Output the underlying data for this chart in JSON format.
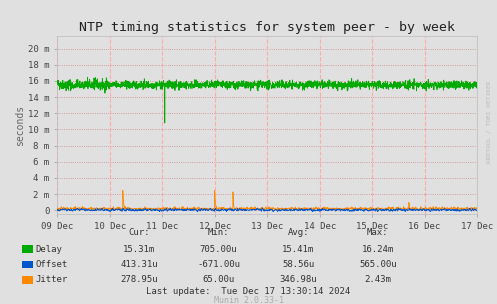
{
  "title": "NTP timing statistics for system peer - by week",
  "ylabel": "seconds",
  "background_color": "#e0e0e0",
  "plot_bg_color": "#e0e0e0",
  "grid_color_h": "#cc8888",
  "grid_color_v": "#ffaaaa",
  "title_color": "#333333",
  "watermark": "RRDTOOL / TOBI OETIKER",
  "munin_label": "Munin 2.0.33-1",
  "last_update": "Last update:  Tue Dec 17 13:30:14 2024",
  "xticklabels": [
    "09 Dec",
    "10 Dec",
    "11 Dec",
    "12 Dec",
    "13 Dec",
    "14 Dec",
    "15 Dec",
    "16 Dec",
    "17 Dec"
  ],
  "ytick_labels": [
    "0",
    "2 m",
    "4 m",
    "6 m",
    "8 m",
    "10 m",
    "12 m",
    "14 m",
    "16 m",
    "18 m",
    "20 m"
  ],
  "ytick_values": [
    0,
    0.002,
    0.004,
    0.006,
    0.008,
    0.01,
    0.012,
    0.014,
    0.016,
    0.018,
    0.02
  ],
  "ylim": [
    -0.0005,
    0.0215
  ],
  "delay_color": "#00aa00",
  "offset_color": "#0055cc",
  "jitter_color": "#ff8800",
  "legend_items": [
    {
      "label": "Delay",
      "color": "#00aa00"
    },
    {
      "label": "Offset",
      "color": "#0055cc"
    },
    {
      "label": "Jitter",
      "color": "#ff8800"
    }
  ],
  "stats": {
    "headers": [
      "Cur:",
      "Min:",
      "Avg:",
      "Max:"
    ],
    "Delay": [
      "15.31m",
      "705.00u",
      "15.41m",
      "16.24m"
    ],
    "Offset": [
      "413.31u",
      "-671.00u",
      "58.56u",
      "565.00u"
    ],
    "Jitter": [
      "278.95u",
      "65.00u",
      "346.98u",
      "2.43m"
    ]
  }
}
